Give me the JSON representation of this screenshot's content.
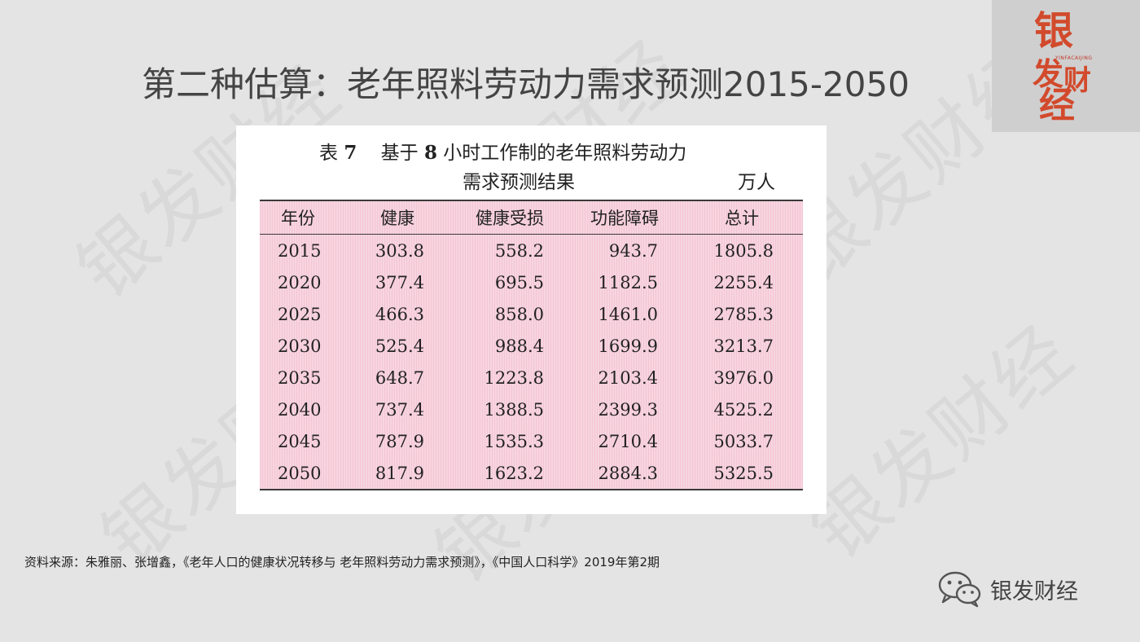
{
  "slide": {
    "title": "第二种估算：老年照料劳动力需求预测2015-2050",
    "watermark_text": "银发财经"
  },
  "logo": {
    "chars": [
      "银",
      "发",
      "财",
      "经"
    ],
    "subtitle": "YINFACAIJING",
    "color": "#d24a2c"
  },
  "table": {
    "caption_label": "表",
    "caption_num": "7",
    "caption_text_1": "基于",
    "caption_num2": "8",
    "caption_text_2": "小时工作制的老年照料劳动力",
    "caption_line2": "需求预测结果",
    "unit": "万人",
    "headers": [
      "年份",
      "健康",
      "健康受损",
      "功能障碍",
      "总计"
    ],
    "rows": [
      [
        "2015",
        "303.8",
        "558.2",
        "943.7",
        "1805.8"
      ],
      [
        "2020",
        "377.4",
        "695.5",
        "1182.5",
        "2255.4"
      ],
      [
        "2025",
        "466.3",
        "858.0",
        "1461.0",
        "2785.3"
      ],
      [
        "2030",
        "525.4",
        "988.4",
        "1699.9",
        "3213.7"
      ],
      [
        "2035",
        "648.7",
        "1223.8",
        "2103.4",
        "3976.0"
      ],
      [
        "2040",
        "737.4",
        "1388.5",
        "2399.3",
        "4525.2"
      ],
      [
        "2045",
        "787.9",
        "1535.3",
        "2710.4",
        "5033.7"
      ],
      [
        "2050",
        "817.9",
        "1623.2",
        "2884.3",
        "5325.5"
      ]
    ]
  },
  "source": {
    "text": "资料来源：朱雅丽、张增鑫，《老年人口的健康状况转移与 老年照料劳动力需求预测》，《中国人口科学》2019年第2期"
  },
  "wechat": {
    "icon": "wechat-icon",
    "account_name": "银发财经"
  }
}
